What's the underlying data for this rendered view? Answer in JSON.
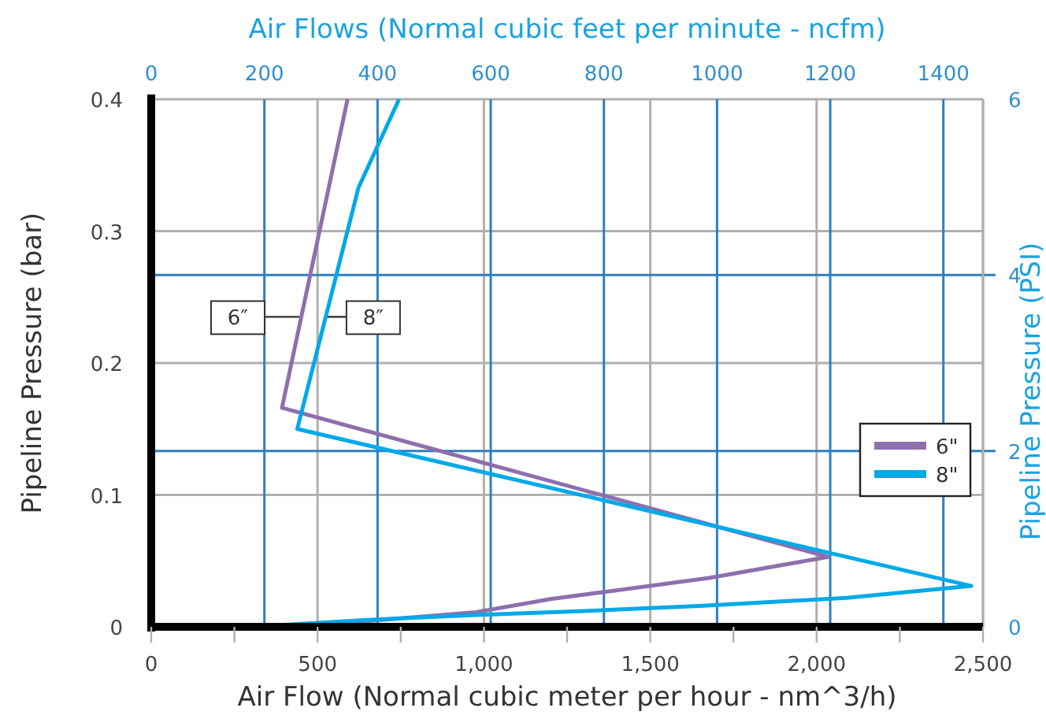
{
  "chart_data": {
    "type": "line",
    "xlabel": "Air Flow (Normal cubic meter per hour - nm^3/h)",
    "ylabel": "Pipeline Pressure (bar)",
    "y2label": "Pipeline Pressure (PSI)",
    "x2label": "Air Flows (Normal cubic feet per minute - ncfm)",
    "xlim": [
      0,
      2500
    ],
    "xticks": [
      0,
      {
        "value": 250,
        "label": null
      },
      500,
      {
        "value": 750,
        "label": null
      },
      {
        "value": 1000,
        "label": "1,000"
      },
      {
        "value": 1250,
        "label": null
      },
      {
        "value": 1500,
        "label": "1,500"
      },
      {
        "value": 1750,
        "label": null
      },
      {
        "value": 2000,
        "label": "2,000"
      },
      {
        "value": 2250,
        "label": null
      },
      {
        "value": 2500,
        "label": "2,500"
      }
    ],
    "ylim": [
      0,
      0.4
    ],
    "yticks": [
      0,
      0.1,
      0.2,
      0.3,
      0.4
    ],
    "x2lim": [
      0,
      1470
    ],
    "x2ticks": [
      0,
      200,
      400,
      600,
      800,
      1000,
      1200,
      1400
    ],
    "y2lim": [
      0,
      6
    ],
    "y2ticks": [
      0,
      2,
      4,
      6
    ],
    "grid": true,
    "legend": "bottom right",
    "marker": "none",
    "line_style": "solid",
    "annotations": [
      {
        "text": "6″",
        "x": 445,
        "y": 0.235
      },
      {
        "text": "8″",
        "x": 530,
        "y": 0.235
      }
    ],
    "series": [
      {
        "name": "6\"",
        "color": "#8e6fae",
        "x": [
          300,
          630,
          975,
          1200,
          1676,
          2035,
          393,
          590
        ],
        "values": [
          0,
          0.004,
          0.011,
          0.021,
          0.037,
          0.053,
          0.166,
          0.4
        ]
      },
      {
        "name": "8\"",
        "color": "#00a9e8",
        "x": [
          300,
          630,
          975,
          1300,
          1660,
          2090,
          2465,
          439,
          623,
          745
        ],
        "values": [
          0,
          0.005,
          0.009,
          0.012,
          0.016,
          0.022,
          0.031,
          0.15,
          0.333,
          0.4
        ]
      }
    ]
  }
}
